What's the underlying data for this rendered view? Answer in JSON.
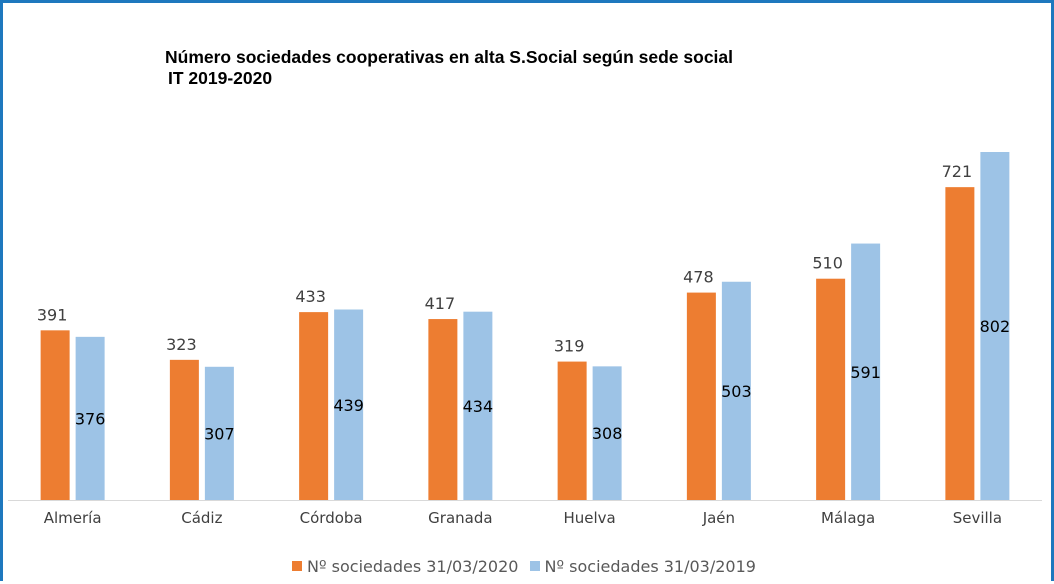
{
  "chart_data": {
    "type": "bar",
    "title": [
      "Número sociedades cooperativas en alta S.Social según sede social",
      "IT 2019-2020"
    ],
    "categories": [
      "Almería",
      "Cádiz",
      "Córdoba",
      "Granada",
      "Huelva",
      "Jaén",
      "Málaga",
      "Sevilla"
    ],
    "series": [
      {
        "name": "Nº sociedades 31/03/2020",
        "color": "#ed7d31",
        "values": [
          391,
          323,
          433,
          417,
          319,
          478,
          510,
          721
        ]
      },
      {
        "name": "Nº sociedades 31/03/2019",
        "color": "#9dc3e6",
        "values": [
          376,
          307,
          439,
          434,
          308,
          503,
          591,
          802
        ]
      }
    ],
    "data_labels": {
      "series_1": "outside-end",
      "series_2": "center"
    },
    "ylim": [
      0,
      802
    ],
    "grid": false,
    "legend_position": "bottom",
    "axis_line_color": "#d9d9d9",
    "label_color": "#404040"
  }
}
